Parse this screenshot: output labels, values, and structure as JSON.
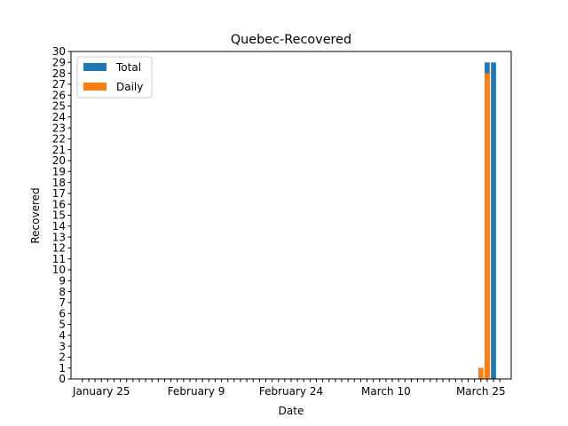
{
  "chart_data": {
    "type": "bar",
    "title": "Quebec-Recovered",
    "xlabel": "Date",
    "ylabel": "Recovered",
    "ylim": [
      0,
      30
    ],
    "yticks": [
      0,
      1,
      2,
      3,
      4,
      5,
      6,
      7,
      8,
      9,
      10,
      11,
      12,
      13,
      14,
      15,
      16,
      17,
      18,
      19,
      20,
      21,
      22,
      23,
      24,
      25,
      26,
      27,
      28,
      29,
      30
    ],
    "x_start": "2020-01-22",
    "x_end": "2020-03-28",
    "x_tick_labels": [
      {
        "label": "January 25",
        "date": "2020-01-25"
      },
      {
        "label": "February 9",
        "date": "2020-02-09"
      },
      {
        "label": "February 24",
        "date": "2020-02-24"
      },
      {
        "label": "March 10",
        "date": "2020-03-10"
      },
      {
        "label": "March 25",
        "date": "2020-03-25"
      }
    ],
    "legend": {
      "placement": "upper-left"
    },
    "grid": false,
    "series": [
      {
        "name": "Total",
        "color": "#1f77b4",
        "points": [
          {
            "date": "2020-03-25",
            "value": 1
          },
          {
            "date": "2020-03-26",
            "value": 29
          },
          {
            "date": "2020-03-27",
            "value": 29
          }
        ]
      },
      {
        "name": "Daily",
        "color": "#ff7f0e",
        "points": [
          {
            "date": "2020-03-25",
            "value": 1
          },
          {
            "date": "2020-03-26",
            "value": 28
          }
        ]
      }
    ]
  }
}
